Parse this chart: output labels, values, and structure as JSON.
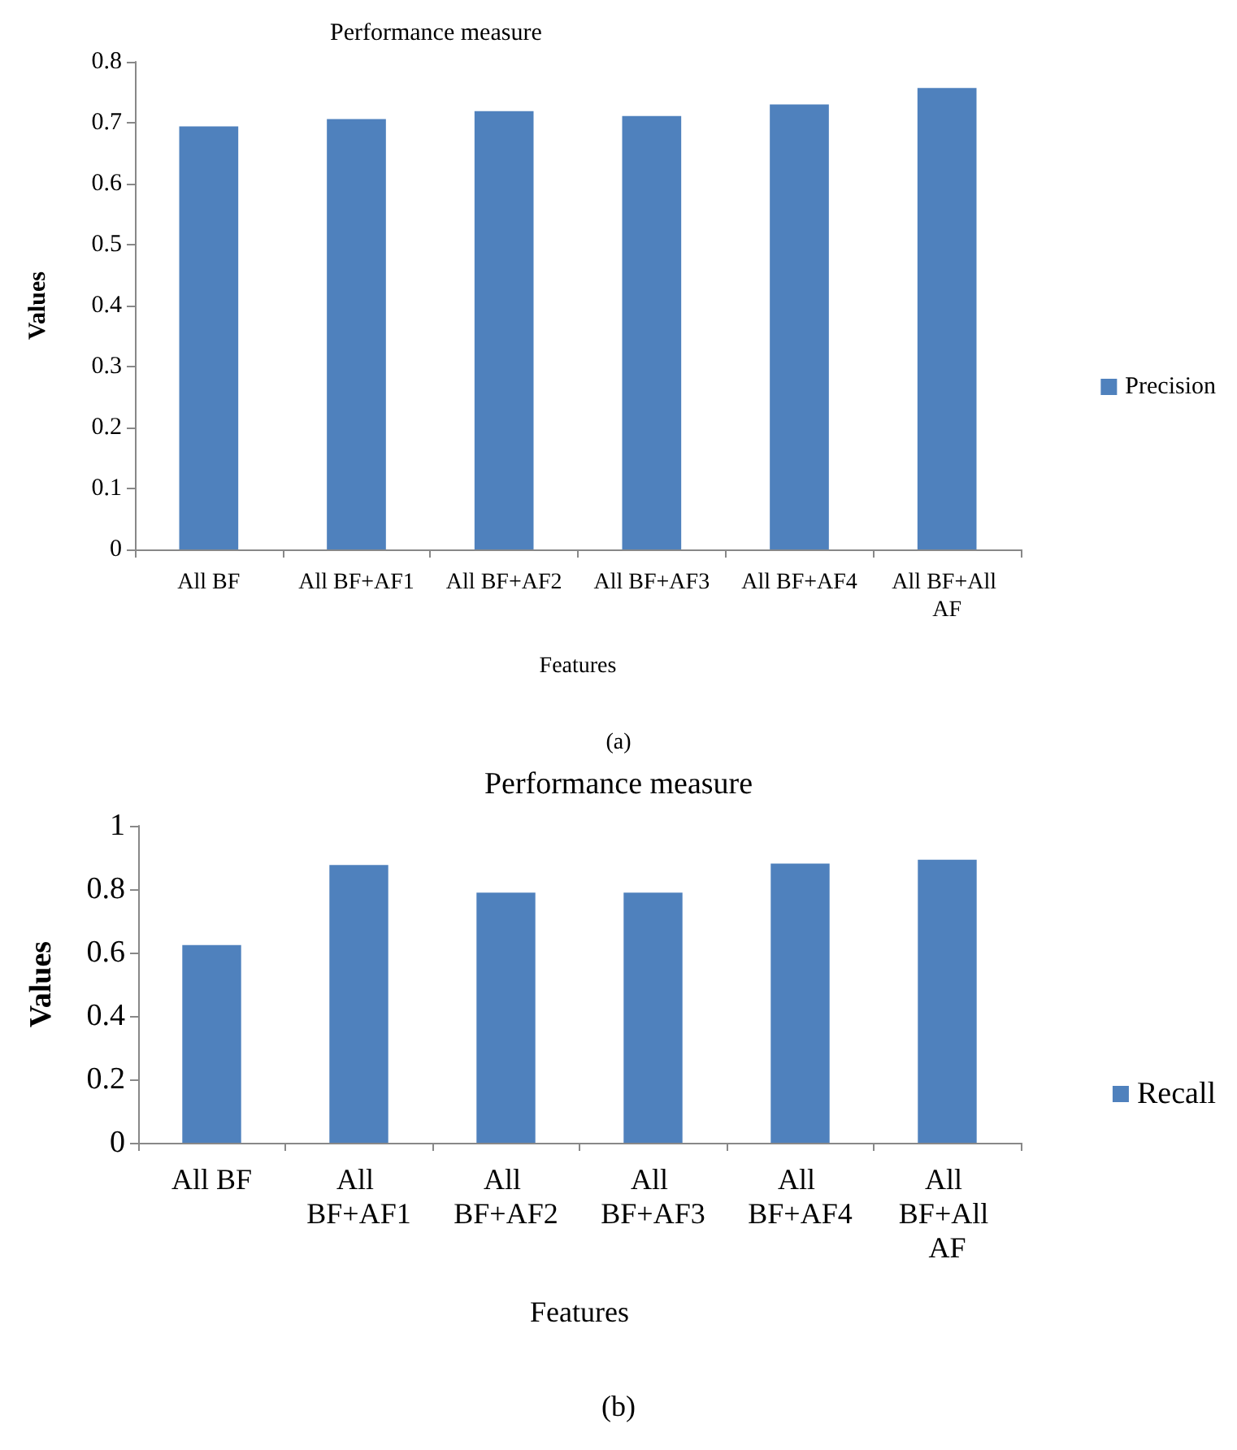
{
  "chart_data": [
    {
      "type": "bar",
      "title": "Performance measure",
      "xlabel": "Features",
      "ylabel": "Values",
      "categories": [
        "All BF",
        "All BF+AF1",
        "All BF+AF2",
        "All BF+AF3",
        "All BF+AF4",
        "All BF+All AF"
      ],
      "series": [
        {
          "name": "Precision",
          "color": "#4f81bd",
          "values": [
            0.694,
            0.706,
            0.719,
            0.711,
            0.73,
            0.757
          ]
        }
      ],
      "ylim": [
        0,
        0.8
      ],
      "yticks": [
        0,
        0.1,
        0.2,
        0.3,
        0.4,
        0.5,
        0.6,
        0.7,
        0.8
      ],
      "grid": false,
      "legend": "right",
      "annotations": [
        "(a)"
      ]
    },
    {
      "type": "bar",
      "title": "Performance measure",
      "xlabel": "Features",
      "ylabel": "Values",
      "categories": [
        "All BF",
        "All BF+AF1",
        "All BF+AF2",
        "All BF+AF3",
        "All BF+AF4",
        "All BF+All AF"
      ],
      "series": [
        {
          "name": "Recall",
          "color": "#4f81bd",
          "values": [
            0.624,
            0.876,
            0.789,
            0.789,
            0.881,
            0.893
          ]
        }
      ],
      "ylim": [
        0,
        1
      ],
      "yticks": [
        0,
        0.2,
        0.4,
        0.6,
        0.8,
        1
      ],
      "grid": false,
      "legend": "right",
      "annotations": [
        "(b)"
      ]
    }
  ]
}
